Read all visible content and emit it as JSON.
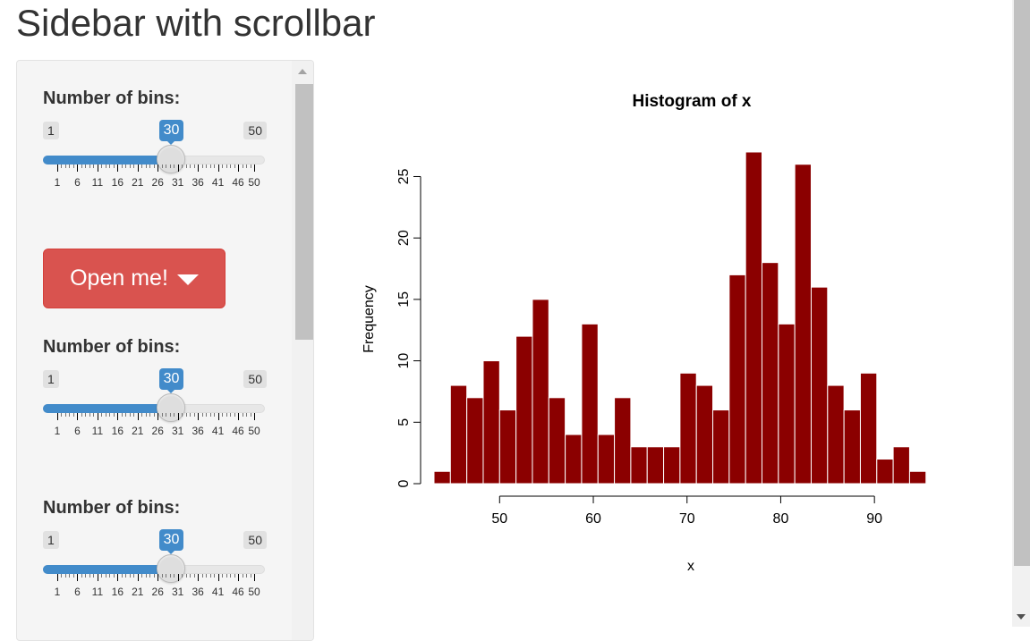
{
  "title": "Sidebar with scrollbar",
  "sidebar": {
    "controls": [
      {
        "label": "Number of bins:",
        "min": "1",
        "max": "50",
        "value": "30",
        "value_num": 30
      },
      {
        "label": "Number of bins:",
        "min": "1",
        "max": "50",
        "value": "30",
        "value_num": 30
      },
      {
        "label": "Number of bins:",
        "min": "1",
        "max": "50",
        "value": "30",
        "value_num": 30
      }
    ],
    "tick_labels": [
      "1",
      "6",
      "11",
      "16",
      "21",
      "26",
      "31",
      "36",
      "41",
      "46",
      "50"
    ],
    "open_button": {
      "label": "Open me!",
      "icon": "caret-down-icon"
    }
  },
  "colors": {
    "accent": "#428bca",
    "button": "#d9534f",
    "bars": "#8b0000"
  },
  "chart_data": {
    "type": "bar",
    "title": "Histogram of x",
    "xlabel": "x",
    "ylabel": "Frequency",
    "bin_width": 1.75,
    "bin_start": 43,
    "values": [
      1,
      8,
      7,
      10,
      6,
      12,
      15,
      7,
      4,
      13,
      4,
      7,
      3,
      3,
      3,
      9,
      8,
      6,
      17,
      27,
      18,
      13,
      26,
      16,
      8,
      6,
      9,
      2,
      3,
      1
    ],
    "xticks": [
      "50",
      "60",
      "70",
      "80",
      "90"
    ],
    "yticks": [
      "0",
      "5",
      "10",
      "15",
      "20",
      "25"
    ],
    "xlim": [
      43,
      96
    ],
    "ylim": [
      0,
      27
    ],
    "grid": false,
    "bar_color": "#8b0000"
  }
}
